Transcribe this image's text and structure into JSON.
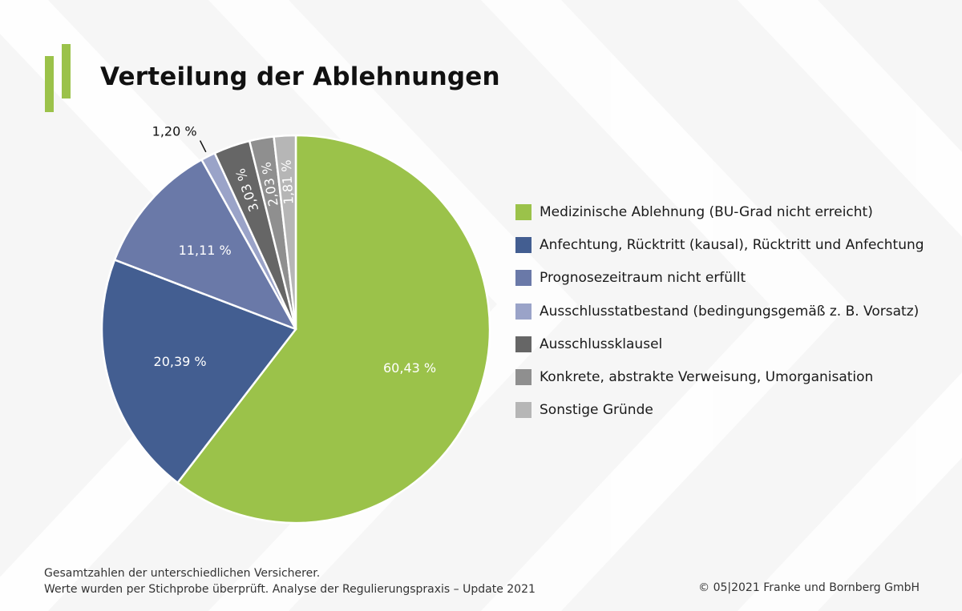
{
  "title": "Verteilung der Ablehnungen",
  "colors": {
    "accent": "#9bc24a",
    "slices": [
      "#9bc24a",
      "#435e91",
      "#6a79a8",
      "#9aa3c8",
      "#666666",
      "#8f8f8f",
      "#b6b6b6"
    ]
  },
  "chart_data": {
    "type": "pie",
    "title": "Verteilung der Ablehnungen",
    "categories": [
      "Medizinische Ablehnung (BU-Grad nicht erreicht)",
      "Anfechtung, Rücktritt (kausal), Rücktritt und Anfechtung",
      "Prognosezeitraum nicht erfüllt",
      "Ausschlusstatbestand (bedingungsgemäß z. B. Vorsatz)",
      "Ausschlussklausel",
      "Konkrete, abstrakte Verweisung, Umorganisation",
      "Sonstige Gründe"
    ],
    "values": [
      60.43,
      20.39,
      11.11,
      1.2,
      3.03,
      2.03,
      1.81
    ],
    "labels": [
      "60,43 %",
      "20,39 %",
      "11,11 %",
      "1,20 %",
      "3,03 %",
      "2,03 %",
      "1,81 %"
    ],
    "legend_position": "right"
  },
  "footnotes": {
    "line1": "Gesamtzahlen der unterschiedlichen Versicherer.",
    "line2": "Werte wurden per Stichprobe überprüft. Analyse der Regulierungspraxis – Update 2021",
    "copyright": "© 05|2021 Franke und Bornberg GmbH"
  }
}
